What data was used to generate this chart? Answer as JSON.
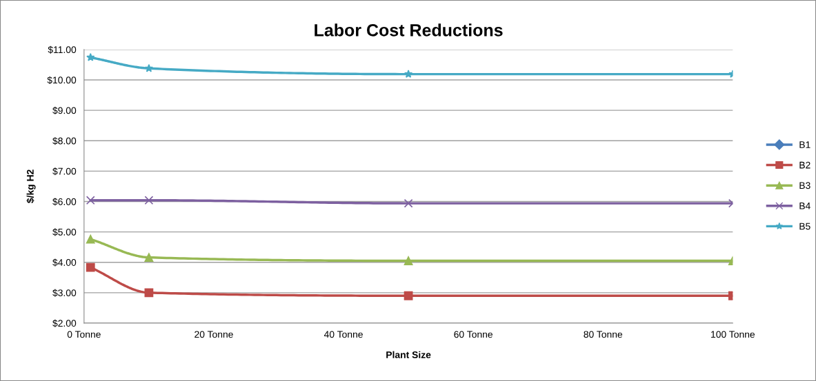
{
  "chart_data": {
    "type": "line",
    "title": "Labor Cost Reductions",
    "xlabel": "Plant Size",
    "ylabel": "$/kg H2",
    "x": [
      1,
      10,
      50,
      100
    ],
    "xlim": [
      0,
      100
    ],
    "xticks": [
      {
        "value": 0,
        "label": "0 Tonne"
      },
      {
        "value": 20,
        "label": "20 Tonne"
      },
      {
        "value": 40,
        "label": "40 Tonne"
      },
      {
        "value": 60,
        "label": "60 Tonne"
      },
      {
        "value": 80,
        "label": "80 Tonne"
      },
      {
        "value": 100,
        "label": "100 Tonne"
      }
    ],
    "ylim": [
      2,
      11
    ],
    "yticks": [
      {
        "value": 2,
        "label": "$2.00"
      },
      {
        "value": 3,
        "label": "$3.00"
      },
      {
        "value": 4,
        "label": "$4.00"
      },
      {
        "value": 5,
        "label": "$5.00"
      },
      {
        "value": 6,
        "label": "$6.00"
      },
      {
        "value": 7,
        "label": "$7.00"
      },
      {
        "value": 8,
        "label": "$8.00"
      },
      {
        "value": 9,
        "label": "$9.00"
      },
      {
        "value": 10,
        "label": "$10.00"
      },
      {
        "value": 11,
        "label": "$11.00"
      }
    ],
    "grid": "y",
    "legend": "right",
    "line_style": "solid",
    "series": [
      {
        "name": "B1",
        "color": "#4a7ebb",
        "marker": "diamond",
        "values": [
          null,
          null,
          null,
          null
        ]
      },
      {
        "name": "B2",
        "color": "#be4b48",
        "marker": "square",
        "values": [
          3.83,
          3.0,
          2.9,
          2.9
        ]
      },
      {
        "name": "B3",
        "color": "#98b954",
        "marker": "triangle",
        "values": [
          4.76,
          4.16,
          4.05,
          4.05
        ]
      },
      {
        "name": "B4",
        "color": "#7d60a0",
        "marker": "cross",
        "values": [
          6.04,
          6.04,
          5.94,
          5.94
        ]
      },
      {
        "name": "B5",
        "color": "#46aac5",
        "marker": "star",
        "values": [
          10.74,
          10.38,
          10.19,
          10.19
        ]
      }
    ]
  }
}
